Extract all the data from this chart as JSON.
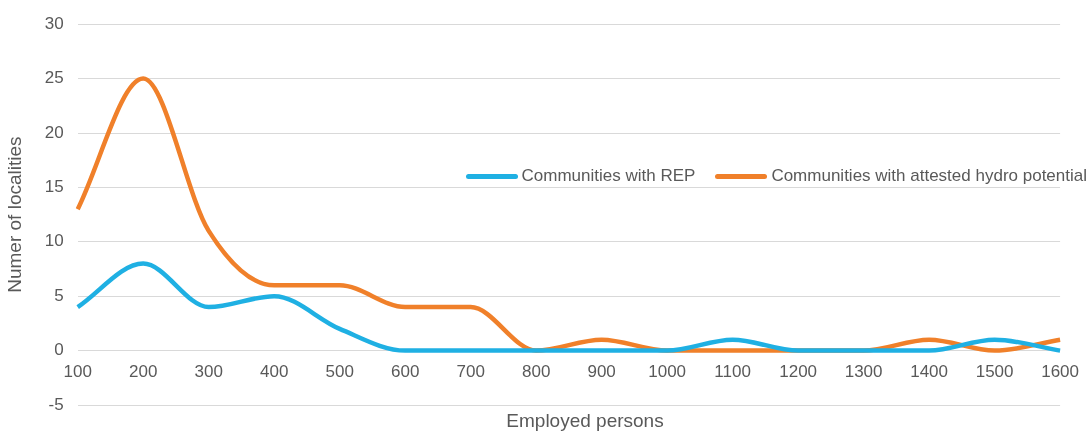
{
  "chart_data": {
    "type": "line",
    "xlabel": "Employed persons",
    "ylabel": "Numer of localities",
    "categories": [
      "100",
      "200",
      "300",
      "400",
      "500",
      "600",
      "700",
      "800",
      "900",
      "1000",
      "1100",
      "1200",
      "1300",
      "1400",
      "1500",
      "1600"
    ],
    "series": [
      {
        "name": "Communities with REP",
        "color": "#1fb0e3",
        "values": [
          4,
          8,
          4,
          5,
          2,
          0,
          0,
          0,
          0,
          0,
          1,
          0,
          0,
          0,
          1,
          0
        ]
      },
      {
        "name": "Communities with attested hydro potential",
        "color": "#f0802a",
        "values": [
          13,
          25,
          11,
          6,
          6,
          4,
          4,
          0,
          1,
          0,
          0,
          0,
          0,
          1,
          0,
          1
        ]
      }
    ],
    "ylim": [
      -5,
      30
    ],
    "yticks": [
      -5,
      0,
      5,
      10,
      15,
      20,
      25,
      30
    ],
    "grid": "y",
    "legend": "right",
    "marker": "none",
    "line_style": "solid"
  }
}
